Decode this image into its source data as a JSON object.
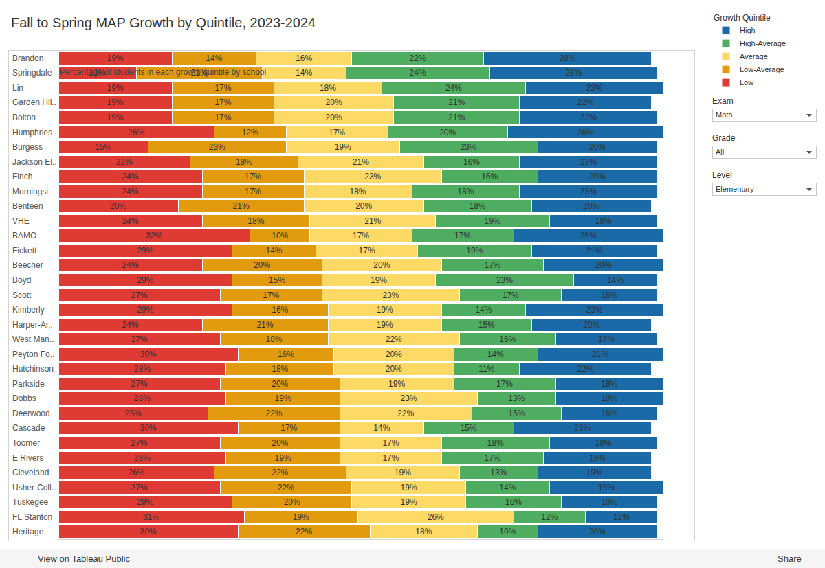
{
  "chart_data": {
    "type": "bar",
    "orientation": "horizontal",
    "stacked": true,
    "data_labels": true,
    "title": "Fall to Spring MAP Growth by Quintile, 2023-2024",
    "subtitle": "Percentage of students in each growth quintile by school",
    "legend_title": "Growth Quintile",
    "legend": "upper right",
    "tick_labels": "y",
    "grid": false,
    "xlim": [
      0,
      101
    ],
    "xticks": [],
    "categories": [
      "Brandon",
      "Springdale",
      "Lin",
      "Garden Hil..",
      "Bolton",
      "Humphries",
      "Burgess",
      "Jackson El..",
      "Finch",
      "Morningsi..",
      "Benteen",
      "VHE",
      "BAMO",
      "Fickett",
      "Beecher",
      "Boyd",
      "Scott",
      "Kimberly",
      "Harper-Ar..",
      "West Man..",
      "Peyton Fo..",
      "Hutchinson",
      "Parkside",
      "Dobbs",
      "Deerwood",
      "Cascade",
      "Toomer",
      "E Rivers",
      "Cleveland",
      "Usher-Coll..",
      "Tuskegee",
      "FL Stanton",
      "Heritage"
    ],
    "series": [
      {
        "name": "Low",
        "color": "#e03a35",
        "values": [
          19,
          13,
          19,
          19,
          19,
          26,
          15,
          22,
          24,
          24,
          20,
          24,
          32,
          29,
          24,
          29,
          27,
          29,
          24,
          27,
          30,
          28,
          27,
          28,
          25,
          30,
          27,
          28,
          26,
          27,
          29,
          31,
          30
        ],
        "value_labels": [
          "19%",
          "13%",
          "19%",
          "19%",
          "19%",
          "26%",
          "15%",
          "22%",
          "24%",
          "24%",
          "20%",
          "24%",
          "32%",
          "29%",
          "24%",
          "29%",
          "27%",
          "29%",
          "24%",
          "27%",
          "30%",
          "28%",
          "27%",
          "28%",
          "25%",
          "30%",
          "27%",
          "28%",
          "26%",
          "27%",
          "29%",
          "31%",
          "30%"
        ]
      },
      {
        "name": "Low-Average",
        "color": "#e29b0f",
        "values": [
          14,
          21,
          17,
          17,
          17,
          12,
          23,
          18,
          17,
          17,
          21,
          18,
          10,
          14,
          20,
          15,
          17,
          16,
          21,
          18,
          16,
          18,
          20,
          19,
          22,
          17,
          20,
          19,
          22,
          22,
          20,
          19,
          22
        ],
        "value_labels": [
          "14%",
          "21%",
          "17%",
          "17%",
          "17%",
          "12%",
          "23%",
          "18%",
          "17%",
          "17%",
          "21%",
          "18%",
          "10%",
          "14%",
          "20%",
          "15%",
          "17%",
          "16%",
          "21%",
          "18%",
          "16%",
          "18%",
          "20%",
          "19%",
          "22%",
          "17%",
          "20%",
          "19%",
          "22%",
          "22%",
          "20%",
          "19%",
          "22%"
        ]
      },
      {
        "name": "Average",
        "color": "#fdd966",
        "values": [
          16,
          14,
          18,
          20,
          20,
          17,
          19,
          21,
          23,
          18,
          20,
          21,
          17,
          17,
          20,
          19,
          23,
          19,
          19,
          22,
          20,
          20,
          19,
          23,
          22,
          14,
          17,
          17,
          19,
          19,
          19,
          26,
          18
        ],
        "value_labels": [
          "16%",
          "14%",
          "18%",
          "20%",
          "20%",
          "17%",
          "19%",
          "21%",
          "23%",
          "18%",
          "20%",
          "21%",
          "17%",
          "17%",
          "20%",
          "19%",
          "23%",
          "19%",
          "19%",
          "22%",
          "20%",
          "20%",
          "19%",
          "23%",
          "22%",
          "14%",
          "17%",
          "17%",
          "19%",
          "19%",
          "19%",
          "26%",
          "18%"
        ]
      },
      {
        "name": "High-Average",
        "color": "#4ead61",
        "values": [
          22,
          24,
          24,
          21,
          21,
          20,
          23,
          16,
          16,
          18,
          18,
          19,
          17,
          19,
          17,
          23,
          17,
          14,
          15,
          16,
          14,
          11,
          17,
          13,
          15,
          15,
          18,
          17,
          13,
          14,
          16,
          12,
          10
        ],
        "value_labels": [
          "22%",
          "24%",
          "24%",
          "21%",
          "21%",
          "20%",
          "23%",
          "16%",
          "16%",
          "18%",
          "18%",
          "19%",
          "17%",
          "19%",
          "17%",
          "23%",
          "17%",
          "14%",
          "15%",
          "16%",
          "14%",
          "11%",
          "17%",
          "13%",
          "15%",
          "15%",
          "18%",
          "17%",
          "13%",
          "14%",
          "16%",
          "12%",
          "10%"
        ]
      },
      {
        "name": "High",
        "color": "#1a6aa8",
        "values": [
          28,
          28,
          23,
          22,
          23,
          26,
          20,
          23,
          20,
          23,
          20,
          18,
          25,
          21,
          20,
          14,
          16,
          23,
          20,
          17,
          21,
          22,
          18,
          18,
          16,
          23,
          18,
          18,
          19,
          19,
          16,
          12,
          20
        ],
        "value_labels": [
          "28%",
          "28%",
          "23%",
          "22%",
          "23%",
          "26%",
          "20%",
          "23%",
          "20%",
          "23%",
          "20%",
          "18%",
          "25%",
          "21%",
          "20%",
          "14%",
          "16%",
          "23%",
          "20%",
          "17%",
          "21%",
          "22%",
          "18%",
          "18%",
          "16%",
          "23%",
          "18%",
          "18%",
          "19%",
          "19%",
          "16%",
          "12%",
          "20%"
        ]
      }
    ]
  },
  "filters": [
    {
      "label": "Exam",
      "value": "Math"
    },
    {
      "label": "Grade",
      "value": "All"
    },
    {
      "label": "Level",
      "value": "Elementary"
    }
  ],
  "footer": {
    "left": "View on Tableau Public",
    "right": "Share"
  }
}
